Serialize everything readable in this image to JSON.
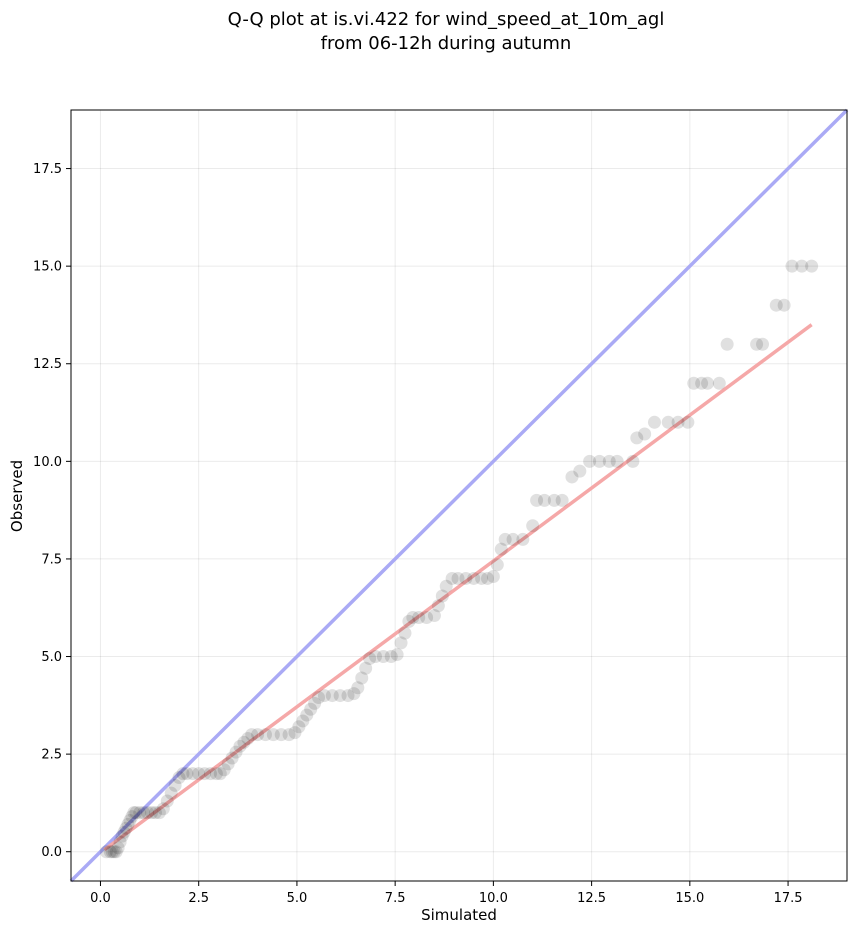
{
  "chart_data": {
    "type": "scatter",
    "title_line1": "Q-Q plot at is.vi.422 for wind_speed_at_10m_agl",
    "title_line2": "from 06-12h during autumn",
    "xlabel": "Simulated",
    "ylabel": "Observed",
    "xlim": [
      -0.75,
      19.0
    ],
    "ylim": [
      -0.75,
      19.0
    ],
    "xticks": [
      0.0,
      2.5,
      5.0,
      7.5,
      10.0,
      12.5,
      15.0,
      17.5
    ],
    "xtick_labels": [
      "0.0",
      "2.5",
      "5.0",
      "7.5",
      "10.0",
      "12.5",
      "15.0",
      "17.5"
    ],
    "yticks": [
      0.0,
      2.5,
      5.0,
      7.5,
      10.0,
      12.5,
      15.0,
      17.5
    ],
    "ytick_labels": [
      "0.0",
      "2.5",
      "5.0",
      "7.5",
      "10.0",
      "12.5",
      "15.0",
      "17.5"
    ],
    "grid": true,
    "identity_line": {
      "from": [
        -0.75,
        -0.75
      ],
      "to": [
        19.0,
        19.0
      ],
      "color": "#aaaaf5"
    },
    "fit_line": {
      "from": [
        0.1,
        0.05
      ],
      "to": [
        18.1,
        13.5
      ],
      "color": "#f5a8a8"
    },
    "point_color": "#000000",
    "series": [
      {
        "values": [
          [
            0.15,
            0.0
          ],
          [
            0.25,
            0.0
          ],
          [
            0.3,
            0.0
          ],
          [
            0.35,
            0.0
          ],
          [
            0.4,
            0.0
          ],
          [
            0.45,
            0.1
          ],
          [
            0.5,
            0.25
          ],
          [
            0.55,
            0.4
          ],
          [
            0.6,
            0.5
          ],
          [
            0.65,
            0.6
          ],
          [
            0.7,
            0.7
          ],
          [
            0.75,
            0.8
          ],
          [
            0.8,
            0.9
          ],
          [
            0.85,
            1.0
          ],
          [
            0.9,
            1.0
          ],
          [
            1.0,
            1.0
          ],
          [
            1.1,
            1.0
          ],
          [
            1.2,
            1.0
          ],
          [
            1.3,
            1.0
          ],
          [
            1.4,
            1.0
          ],
          [
            1.5,
            1.0
          ],
          [
            1.6,
            1.1
          ],
          [
            1.7,
            1.3
          ],
          [
            1.8,
            1.5
          ],
          [
            1.9,
            1.7
          ],
          [
            2.0,
            1.9
          ],
          [
            2.1,
            2.0
          ],
          [
            2.2,
            2.0
          ],
          [
            2.35,
            2.0
          ],
          [
            2.5,
            2.0
          ],
          [
            2.65,
            2.0
          ],
          [
            2.8,
            2.0
          ],
          [
            2.95,
            2.0
          ],
          [
            3.05,
            2.0
          ],
          [
            3.15,
            2.1
          ],
          [
            3.25,
            2.25
          ],
          [
            3.35,
            2.4
          ],
          [
            3.45,
            2.55
          ],
          [
            3.55,
            2.7
          ],
          [
            3.65,
            2.8
          ],
          [
            3.75,
            2.9
          ],
          [
            3.85,
            3.0
          ],
          [
            4.0,
            3.0
          ],
          [
            4.2,
            3.0
          ],
          [
            4.4,
            3.0
          ],
          [
            4.6,
            3.0
          ],
          [
            4.8,
            3.0
          ],
          [
            4.95,
            3.05
          ],
          [
            5.05,
            3.2
          ],
          [
            5.15,
            3.35
          ],
          [
            5.25,
            3.5
          ],
          [
            5.35,
            3.65
          ],
          [
            5.45,
            3.8
          ],
          [
            5.55,
            3.95
          ],
          [
            5.7,
            4.0
          ],
          [
            5.9,
            4.0
          ],
          [
            6.1,
            4.0
          ],
          [
            6.3,
            4.0
          ],
          [
            6.45,
            4.05
          ],
          [
            6.55,
            4.2
          ],
          [
            6.65,
            4.45
          ],
          [
            6.75,
            4.7
          ],
          [
            6.85,
            4.95
          ],
          [
            7.0,
            5.0
          ],
          [
            7.2,
            5.0
          ],
          [
            7.4,
            5.0
          ],
          [
            7.55,
            5.05
          ],
          [
            7.65,
            5.35
          ],
          [
            7.75,
            5.6
          ],
          [
            7.85,
            5.9
          ],
          [
            7.95,
            6.0
          ],
          [
            8.1,
            6.0
          ],
          [
            8.3,
            6.0
          ],
          [
            8.5,
            6.05
          ],
          [
            8.6,
            6.3
          ],
          [
            8.7,
            6.55
          ],
          [
            8.8,
            6.8
          ],
          [
            8.95,
            7.0
          ],
          [
            9.1,
            7.0
          ],
          [
            9.3,
            7.0
          ],
          [
            9.5,
            7.0
          ],
          [
            9.7,
            7.0
          ],
          [
            9.85,
            7.0
          ],
          [
            10.0,
            7.05
          ],
          [
            10.1,
            7.35
          ],
          [
            10.2,
            7.75
          ],
          [
            10.3,
            8.0
          ],
          [
            10.5,
            8.0
          ],
          [
            10.75,
            8.0
          ],
          [
            11.0,
            8.35
          ],
          [
            11.1,
            9.0
          ],
          [
            11.3,
            9.0
          ],
          [
            11.55,
            9.0
          ],
          [
            11.75,
            9.0
          ],
          [
            12.0,
            9.6
          ],
          [
            12.2,
            9.75
          ],
          [
            12.45,
            10.0
          ],
          [
            12.7,
            10.0
          ],
          [
            12.95,
            10.0
          ],
          [
            13.15,
            10.0
          ],
          [
            13.55,
            10.0
          ],
          [
            13.65,
            10.6
          ],
          [
            13.85,
            10.7
          ],
          [
            14.1,
            11.0
          ],
          [
            14.45,
            11.0
          ],
          [
            14.7,
            11.0
          ],
          [
            14.95,
            11.0
          ],
          [
            15.1,
            12.0
          ],
          [
            15.3,
            12.0
          ],
          [
            15.45,
            12.0
          ],
          [
            15.75,
            12.0
          ],
          [
            15.95,
            13.0
          ],
          [
            16.7,
            13.0
          ],
          [
            16.85,
            13.0
          ],
          [
            17.2,
            14.0
          ],
          [
            17.4,
            14.0
          ],
          [
            17.6,
            15.0
          ],
          [
            17.85,
            15.0
          ],
          [
            18.1,
            15.0
          ]
        ]
      }
    ]
  }
}
